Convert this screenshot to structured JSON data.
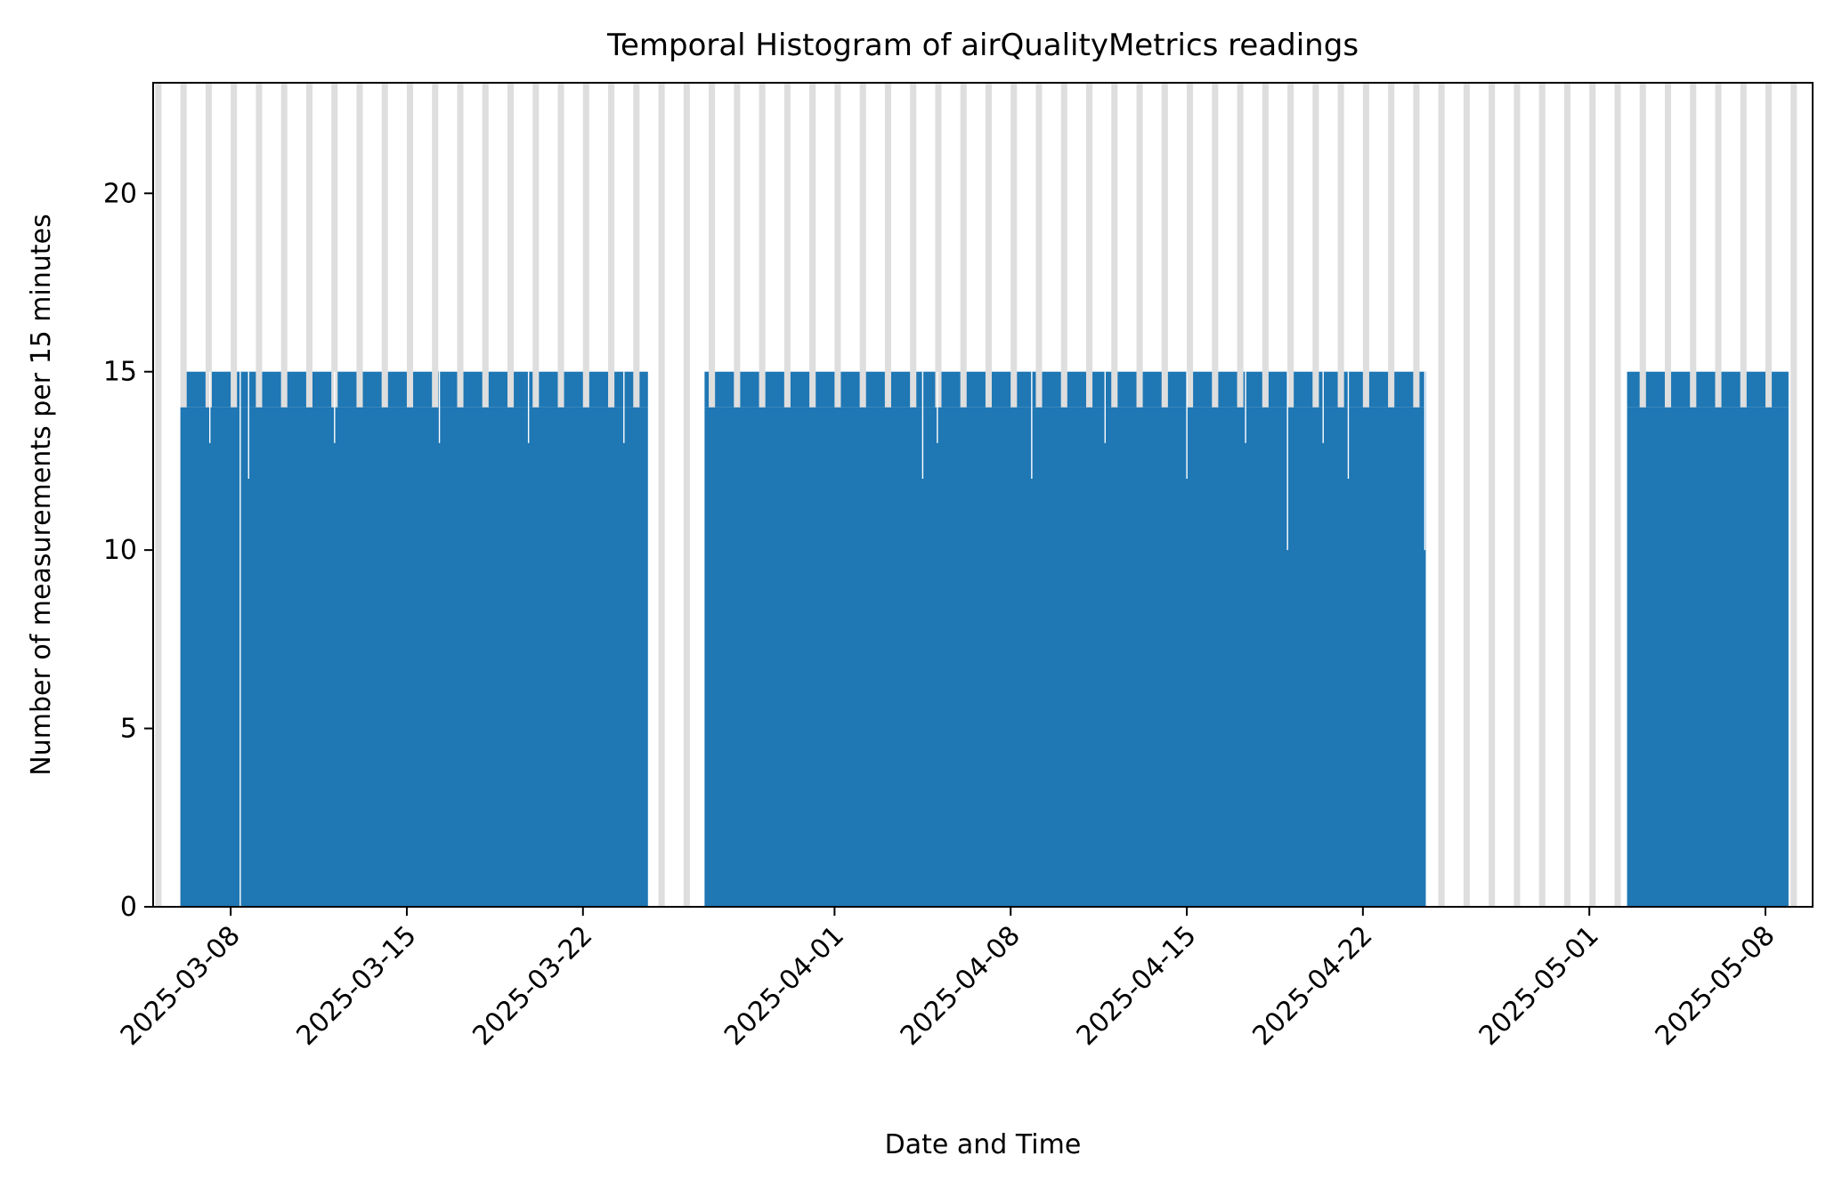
{
  "colors": {
    "bar": "#1f77b4",
    "night_band": "#d3d3d3",
    "axis": "#000000",
    "background": "#ffffff"
  },
  "chart_data": {
    "type": "bar",
    "title": "Temporal Histogram of airQualityMetrics readings",
    "xlabel": "Date and Time",
    "ylabel": "Number of measurements per 15 minutes",
    "bin_width_minutes": 15,
    "xlim": [
      "2025-03-04T22:00",
      "2025-05-09T21:00"
    ],
    "ylim": [
      0,
      23.1
    ],
    "x_ticks": [
      "2025-03-08",
      "2025-03-15",
      "2025-03-22",
      "2025-04-01",
      "2025-04-08",
      "2025-04-15",
      "2025-04-22",
      "2025-05-01",
      "2025-05-08"
    ],
    "y_ticks": [
      0,
      5,
      10,
      15,
      20
    ],
    "grid": false,
    "legend": "none",
    "background_bands": {
      "description": "light grey vertical bands marking recurring night-time intervals",
      "start": "2025-03-05",
      "end": "2025-05-10",
      "daily_from_hour": 0,
      "daily_to_hour": 6
    },
    "segments": [
      {
        "start": "2025-03-06T00:00",
        "end": "2025-03-24T14:00",
        "typical_value": 14,
        "peak_value": 15,
        "dips": [
          {
            "time": "2025-03-08T09:00",
            "value": 0
          },
          {
            "time": "2025-03-08T17:00",
            "value": 12
          },
          {
            "time": "2025-03-07T04:00",
            "value": 13
          },
          {
            "time": "2025-03-12T03:00",
            "value": 13
          },
          {
            "time": "2025-03-16T07:00",
            "value": 13
          },
          {
            "time": "2025-03-19T20:00",
            "value": 13
          },
          {
            "time": "2025-03-23T15:00",
            "value": 13
          }
        ]
      },
      {
        "start": "2025-03-26T20:00",
        "end": "2025-04-24T12:00",
        "typical_value": 14,
        "peak_value": 15,
        "dips": [
          {
            "time": "2025-04-04T12:00",
            "value": 12
          },
          {
            "time": "2025-04-08T20:00",
            "value": 12
          },
          {
            "time": "2025-04-15T00:00",
            "value": 12
          },
          {
            "time": "2025-04-19T00:00",
            "value": 10
          },
          {
            "time": "2025-04-21T10:00",
            "value": 12
          },
          {
            "time": "2025-04-24T11:00",
            "value": 10
          },
          {
            "time": "2025-04-05T02:00",
            "value": 13
          },
          {
            "time": "2025-04-11T18:00",
            "value": 13
          },
          {
            "time": "2025-04-17T08:00",
            "value": 13
          },
          {
            "time": "2025-04-20T10:00",
            "value": 13
          }
        ]
      },
      {
        "start": "2025-05-02T12:00",
        "end": "2025-05-08T22:00",
        "typical_value": 14,
        "peak_value": 15,
        "dips": []
      }
    ]
  }
}
